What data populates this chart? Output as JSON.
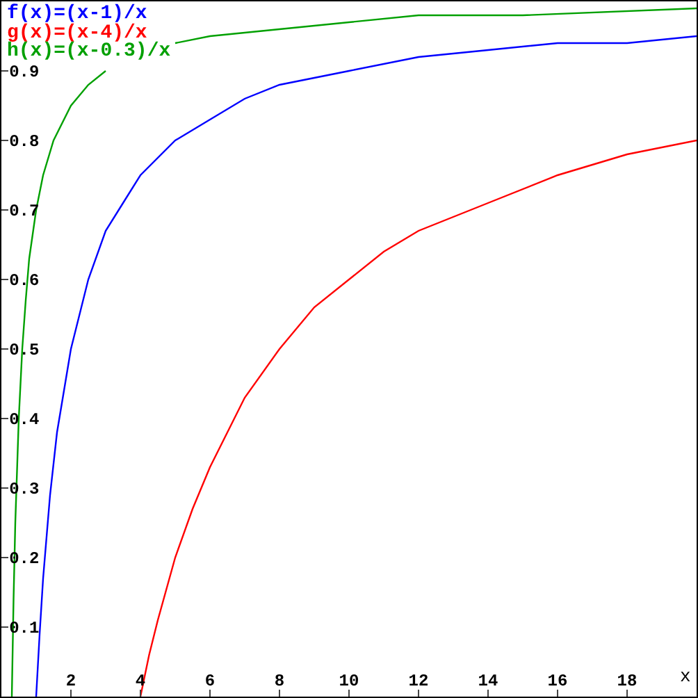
{
  "chart_data": {
    "type": "line",
    "xlabel": "x",
    "xlim": [
      0,
      20
    ],
    "ylim": [
      0,
      1
    ],
    "xticks": [
      2,
      4,
      6,
      8,
      10,
      12,
      14,
      16,
      18
    ],
    "yticks": [
      0.1,
      0.2,
      0.3,
      0.4,
      0.5,
      0.6,
      0.7,
      0.8,
      0.9
    ],
    "legend": "top left",
    "marker": "none",
    "line_style": "solid",
    "series": [
      {
        "name": "f(x)=(x-1)/x",
        "color": "#0000ff",
        "x": [
          1,
          1.1,
          1.2,
          1.4,
          1.6,
          1.8,
          2,
          2.5,
          3,
          3.5,
          4,
          5,
          6,
          7,
          8,
          10,
          12,
          14,
          16,
          18,
          20
        ],
        "values": [
          0,
          0.09,
          0.17,
          0.29,
          0.38,
          0.44,
          0.5,
          0.6,
          0.67,
          0.71,
          0.75,
          0.8,
          0.83,
          0.86,
          0.88,
          0.9,
          0.92,
          0.93,
          0.94,
          0.94,
          0.95
        ]
      },
      {
        "name": "g(x)=(x-4)/x",
        "color": "#ff0000",
        "x": [
          4,
          4.25,
          4.5,
          5,
          5.5,
          6,
          7,
          8,
          9,
          10,
          11,
          12,
          14,
          16,
          18,
          20
        ],
        "values": [
          0,
          0.06,
          0.11,
          0.2,
          0.27,
          0.33,
          0.43,
          0.5,
          0.56,
          0.6,
          0.64,
          0.67,
          0.71,
          0.75,
          0.78,
          0.8
        ]
      },
      {
        "name": "h(x)=(x-0.3)/x",
        "color": "#00a000",
        "x": [
          0.3,
          0.35,
          0.4,
          0.5,
          0.6,
          0.7,
          0.8,
          1,
          1.2,
          1.5,
          2,
          2.5,
          3,
          4,
          5,
          6,
          8,
          10,
          12,
          15,
          20
        ],
        "values": [
          0,
          0.14,
          0.25,
          0.4,
          0.5,
          0.57,
          0.63,
          0.7,
          0.75,
          0.8,
          0.85,
          0.88,
          0.9,
          null,
          0.94,
          0.95,
          0.96,
          0.97,
          0.98,
          0.98,
          0.99
        ]
      }
    ]
  }
}
